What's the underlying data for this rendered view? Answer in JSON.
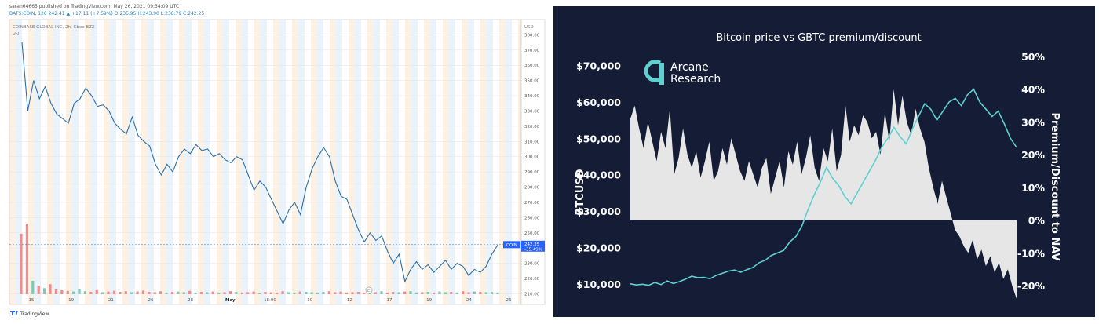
{
  "left": {
    "header_line1": "sarah64665 published on TradingView.com, May 26, 2021 09:34:09 UTC",
    "header_line2": "BATS:COIN, 120  242.41 ▲ +17.11 (+7.59%) O:235.95 H:243.90 L:238.79 C:242.25",
    "symbol_line": "COINBASE GLOBAL INC, 2h, Cboe BZX",
    "vol_label": "Vol",
    "currency": "USD",
    "price_tag": "242.25",
    "coin_tag": "COIN",
    "change_tag": "-35.49%",
    "footer_brand": "TradingView",
    "colors": {
      "line": "#2b6fa8",
      "up_vol": "#7fc7b7",
      "down_vol": "#f28b8b",
      "tag": "#2962ff"
    }
  },
  "chart_data": [
    {
      "type": "line",
      "title": "",
      "xlabel": "",
      "ylabel": "USD",
      "x_ticks": [
        "15",
        "19",
        "21",
        "26",
        "28",
        "May",
        "18:00",
        "10",
        "12",
        "17",
        "19",
        "24",
        "26"
      ],
      "y_ticks": [
        210,
        220,
        230,
        240,
        250,
        260,
        270,
        280,
        290,
        300,
        310,
        320,
        330,
        340,
        350,
        360,
        370,
        380
      ],
      "ylim": [
        203,
        390
      ],
      "series": [
        {
          "values": [
            375,
            330,
            350,
            338,
            346,
            335,
            328,
            325,
            322,
            335,
            338,
            345,
            340,
            333,
            334,
            330,
            322,
            318,
            315,
            326,
            314,
            310,
            307,
            295,
            288,
            295,
            290,
            300,
            305,
            302,
            308,
            304,
            305,
            300,
            302,
            298,
            296,
            300,
            298,
            288,
            278,
            284,
            280,
            272,
            264,
            256,
            265,
            270,
            262,
            280,
            292,
            300,
            306,
            300,
            284,
            274,
            272,
            262,
            252,
            244,
            250,
            245,
            248,
            238,
            230,
            236,
            218,
            226,
            231,
            226,
            229,
            224,
            228,
            232,
            226,
            230,
            228,
            222,
            226,
            224,
            228,
            236,
            242
          ]
        }
      ],
      "volume": [
        180,
        210,
        40,
        25,
        18,
        30,
        14,
        12,
        10,
        8,
        16,
        9,
        7,
        12,
        6,
        8,
        10,
        7,
        9,
        6,
        8,
        11,
        7,
        6,
        9,
        5,
        7,
        8,
        6,
        10,
        5,
        7,
        6,
        8,
        5,
        6,
        9,
        7,
        5,
        6,
        8,
        4,
        7,
        6,
        5,
        9,
        6,
        5,
        8,
        7,
        6,
        5,
        7,
        9,
        6,
        8,
        5,
        6,
        7,
        5,
        8,
        6,
        9,
        5,
        7,
        6,
        8,
        9,
        5,
        6,
        7,
        5,
        8,
        6,
        7,
        5,
        9,
        6,
        8,
        7,
        6,
        7,
        5
      ]
    },
    {
      "type": "area",
      "title": "Bitcoin price vs GBTC premium/discount",
      "xlabel": "",
      "ylabel": "BTCUSD",
      "ylabel_right": "Premium/Discount to NAV",
      "left_ticks": [
        "$10,000",
        "$20,000",
        "$30,000",
        "$40,000",
        "$50,000",
        "$60,000",
        "$70,000"
      ],
      "right_ticks": [
        "-20%",
        "-10%",
        "0%",
        "10%",
        "20%",
        "30%",
        "40%",
        "50%"
      ],
      "ylim_left": [
        5000,
        72500
      ],
      "ylim_right": [
        -25,
        50
      ],
      "series": [
        {
          "name": "GBTC premium/discount",
          "values": [
            31,
            35,
            28,
            22,
            30,
            24,
            18,
            27,
            22,
            34,
            14,
            19,
            28,
            20,
            16,
            21,
            13,
            18,
            24,
            12,
            15,
            22,
            17,
            25,
            20,
            15,
            12,
            18,
            14,
            10,
            16,
            19,
            8,
            13,
            18,
            10,
            21,
            17,
            24,
            14,
            19,
            26,
            16,
            12,
            22,
            18,
            28,
            15,
            20,
            35,
            24,
            29,
            26,
            32,
            30,
            25,
            27,
            20,
            33,
            24,
            40,
            29,
            38,
            30,
            26,
            34,
            28,
            24,
            16,
            10,
            5,
            12,
            7,
            2,
            -3,
            -5,
            -8,
            -10,
            -6,
            -12,
            -9,
            -14,
            -11,
            -16,
            -13,
            -18,
            -15,
            -20,
            -24
          ]
        },
        {
          "name": "BTCUSD",
          "values": [
            10000,
            9700,
            9900,
            9600,
            10400,
            9800,
            10800,
            10100,
            10600,
            11300,
            12100,
            11700,
            11800,
            11400,
            12300,
            12900,
            13500,
            13800,
            13200,
            13900,
            14500,
            15800,
            16500,
            17800,
            18500,
            19200,
            21500,
            23000,
            26000,
            30500,
            34500,
            38000,
            42000,
            39000,
            37000,
            34000,
            32000,
            35000,
            38000,
            41000,
            44000,
            47500,
            50000,
            53000,
            50500,
            48500,
            52500,
            56000,
            59500,
            58000,
            55000,
            57500,
            60000,
            61000,
            59000,
            62000,
            63500,
            60000,
            58000,
            56000,
            57500,
            54000,
            50000,
            47500
          ]
        }
      ]
    }
  ],
  "right": {
    "logo_line1": "Arcane",
    "logo_line2": "Research",
    "colors": {
      "background": "#141d35",
      "area": "#e6e6e6",
      "btc_line": "#5ed0d0",
      "logo": "#5ed0d0",
      "text": "#ffffff"
    }
  }
}
